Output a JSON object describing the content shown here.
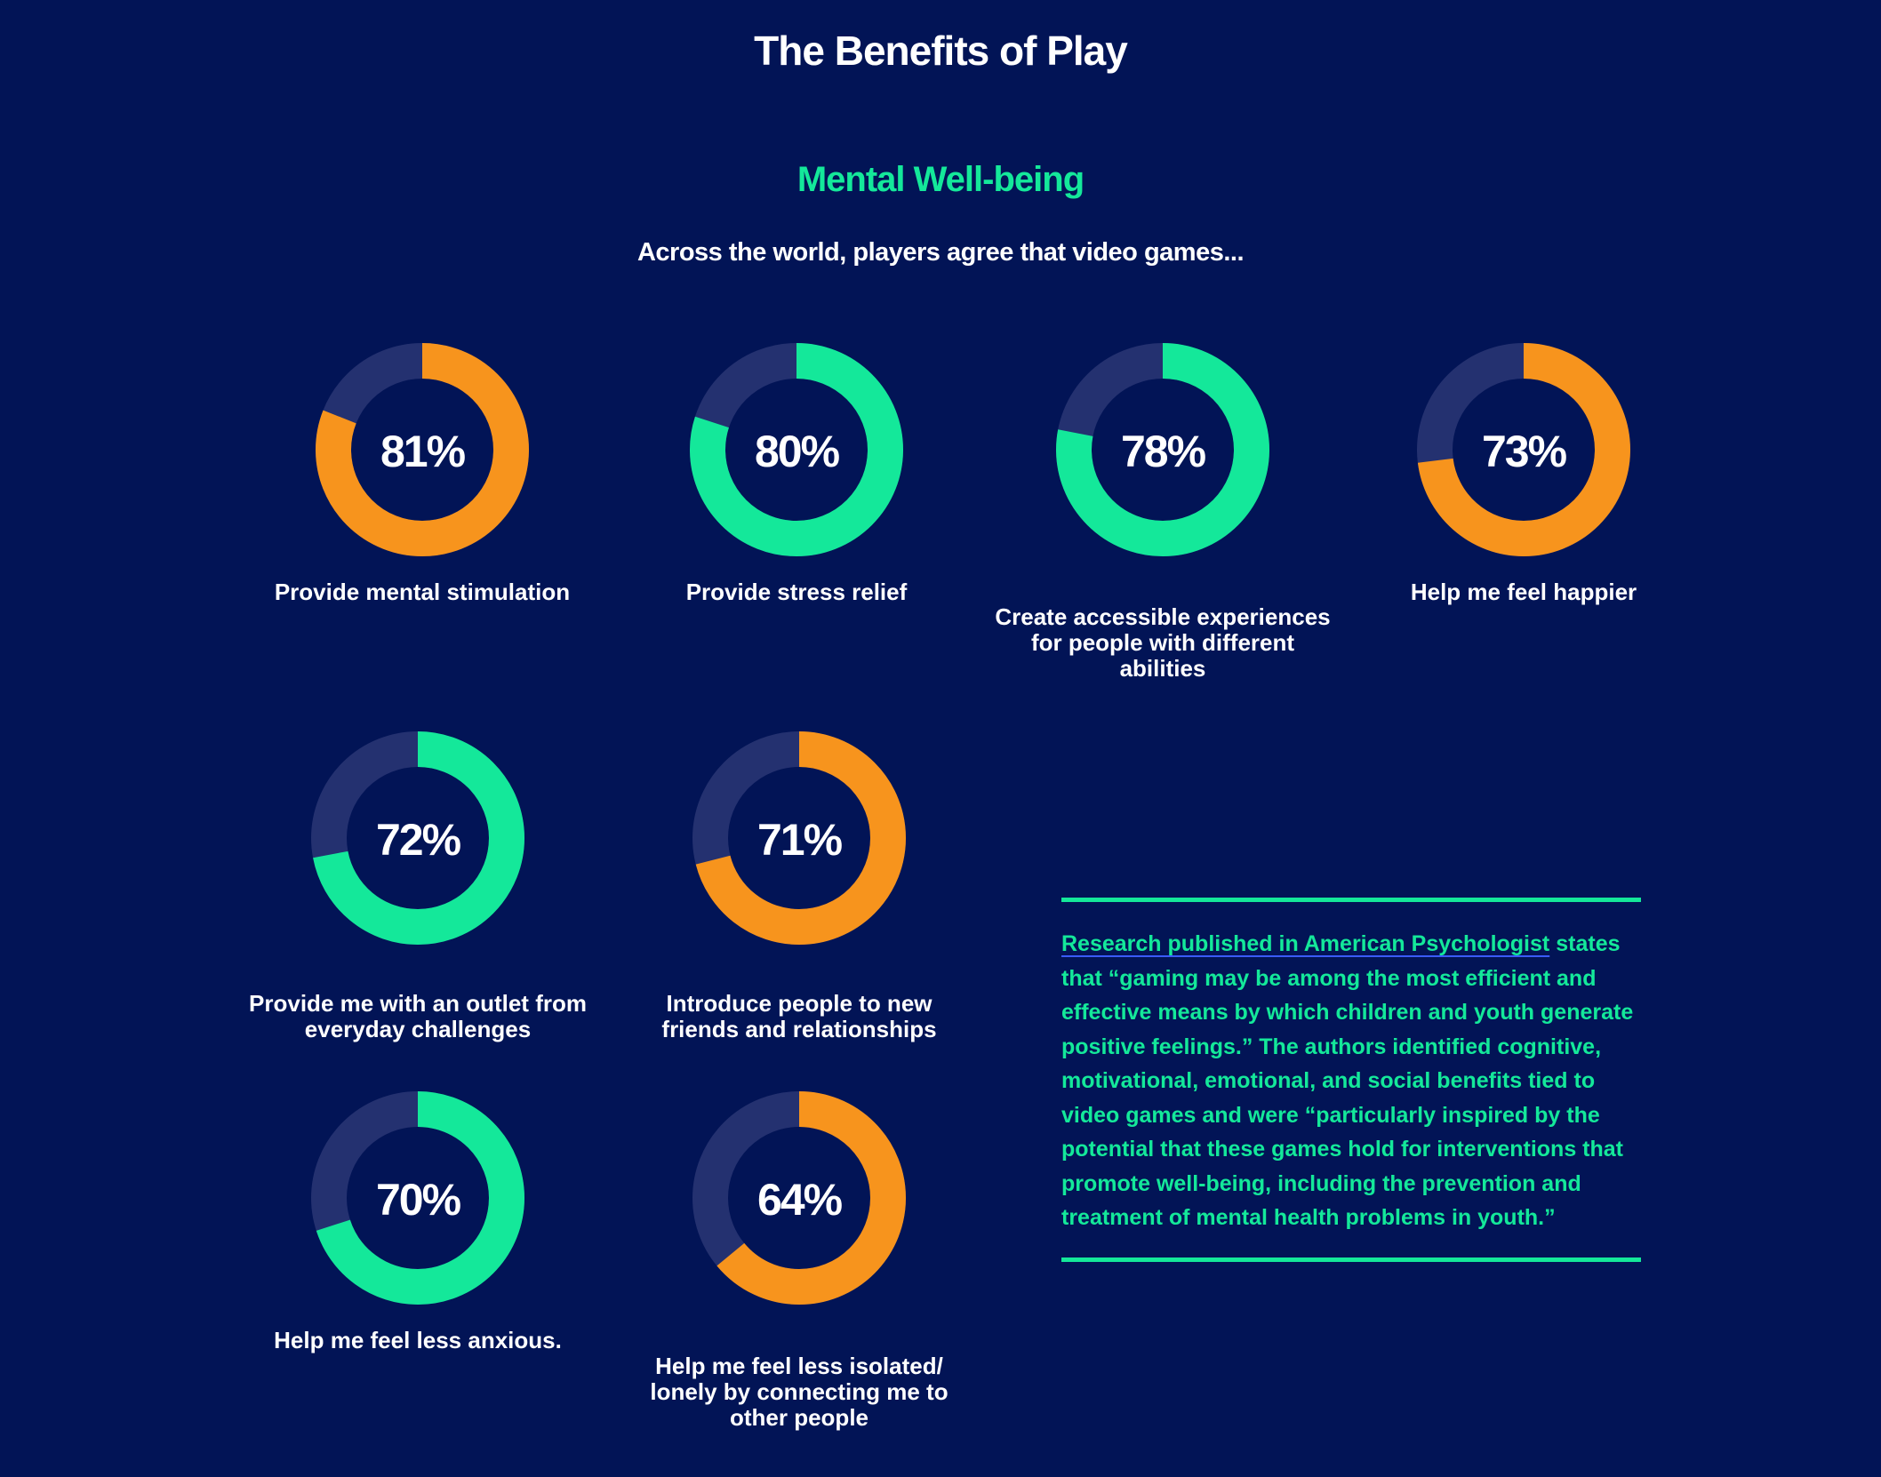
{
  "header": {
    "title": "The Benefits of Play"
  },
  "section": {
    "title": "Mental Well-being",
    "subtitle": "Across the world, players agree that video games..."
  },
  "donut_settings": {
    "track_color": "#243170"
  },
  "donuts": [
    {
      "value": 81,
      "value_label": "81%",
      "caption": "Provide mental stimulation",
      "color": "#f7941d"
    },
    {
      "value": 80,
      "value_label": "80%",
      "caption": "Provide stress relief",
      "color": "#14e89a"
    },
    {
      "value": 78,
      "value_label": "78%",
      "caption": "Create accessible experiences for people with different abilities",
      "color": "#14e89a"
    },
    {
      "value": 73,
      "value_label": "73%",
      "caption": "Help me feel happier",
      "color": "#f7941d"
    },
    {
      "value": 72,
      "value_label": "72%",
      "caption": "Provide me with an outlet from everyday challenges",
      "color": "#14e89a"
    },
    {
      "value": 71,
      "value_label": "71%",
      "caption": "Introduce people to new friends and relationships",
      "color": "#f7941d"
    },
    {
      "value": 70,
      "value_label": "70%",
      "caption": "Help me feel less anxious.",
      "color": "#14e89a"
    },
    {
      "value": 64,
      "value_label": "64%",
      "caption": "Help me feel less isolated/ lonely by connecting me to other people",
      "color": "#f7941d"
    }
  ],
  "quote": {
    "link": "Research published in American Psychologist",
    "text": "states that “gaming may be among the most efficient and effective means by which children and youth generate positive feelings.” The authors identified cognitive, motivational, emotional, and social benefits tied to video games and were “particularly inspired by the potential that these games hold for interventions that promote well-being, including the prevention and treatment of mental health problems in youth.”"
  }
}
